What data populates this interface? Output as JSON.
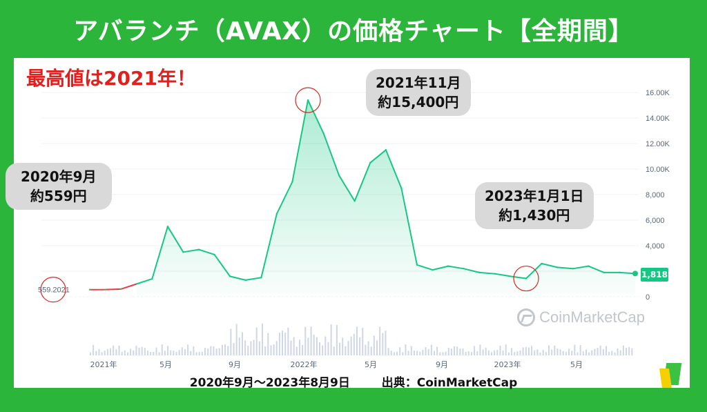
{
  "title": "アバランチ（AVAX）の価格チャート【全期間】",
  "headline": "最高値は2021年！",
  "callouts": {
    "peak": {
      "line1": "2021年11月",
      "line2": "約15,400円"
    },
    "start": {
      "line1": "2020年9月",
      "line2": "約559円"
    },
    "low": {
      "line1": "2023年1月1日",
      "line2": "約1,430円"
    }
  },
  "footer": {
    "period": "2020年9月〜2023年8月9日",
    "source": "出典：CoinMarketCap"
  },
  "brand": "CoinMarketCap",
  "current_price_label": "1,818",
  "start_label": "559.2021",
  "colors": {
    "background": "#2bb53a",
    "line": "#16c784",
    "start_segment": "#ea3943",
    "highlight_circle": "#d12a22",
    "callout_bg": "#d9d9d9"
  },
  "chart_data": {
    "type": "area",
    "title": "アバランチ（AVAX）の価格チャート【全期間】",
    "unit": "JPY",
    "y_ticks": [
      "0",
      "2,000",
      "4,000",
      "6,000",
      "8,000",
      "10.00K",
      "12.00K",
      "14.00K",
      "16.00K"
    ],
    "x_ticks": [
      "2021年",
      "5月",
      "9月",
      "2022年",
      "5月",
      "9月",
      "2023年",
      "5月"
    ],
    "ylim": [
      0,
      17000
    ],
    "x_months": [
      "2020-09",
      "2020-10",
      "2020-11",
      "2020-12",
      "2021-01",
      "2021-02",
      "2021-03",
      "2021-04",
      "2021-05",
      "2021-06",
      "2021-07",
      "2021-08",
      "2021-09",
      "2021-10",
      "2021-11",
      "2021-12",
      "2022-01",
      "2022-02",
      "2022-03",
      "2022-04",
      "2022-05",
      "2022-06",
      "2022-07",
      "2022-08",
      "2022-09",
      "2022-10",
      "2022-11",
      "2022-12",
      "2023-01",
      "2023-02",
      "2023-03",
      "2023-04",
      "2023-05",
      "2023-06",
      "2023-07",
      "2023-08"
    ],
    "values": [
      559,
      560,
      600,
      1000,
      1400,
      5500,
      3500,
      3700,
      3300,
      1600,
      1300,
      1500,
      6500,
      9000,
      15400,
      12800,
      9500,
      7500,
      10500,
      11500,
      8500,
      2500,
      2100,
      2400,
      2200,
      1900,
      1800,
      1600,
      1430,
      2600,
      2300,
      2200,
      2400,
      1900,
      1900,
      1818
    ],
    "annotations": [
      {
        "label": "2021年11月 約15,400円",
        "x": "2021-11",
        "y": 15400
      },
      {
        "label": "2020年9月 約559円",
        "x": "2020-09",
        "y": 559
      },
      {
        "label": "2023年1月1日 約1,430円",
        "x": "2023-01",
        "y": 1430
      }
    ],
    "last_value": 1818,
    "grid": true,
    "volume_bars": true
  }
}
